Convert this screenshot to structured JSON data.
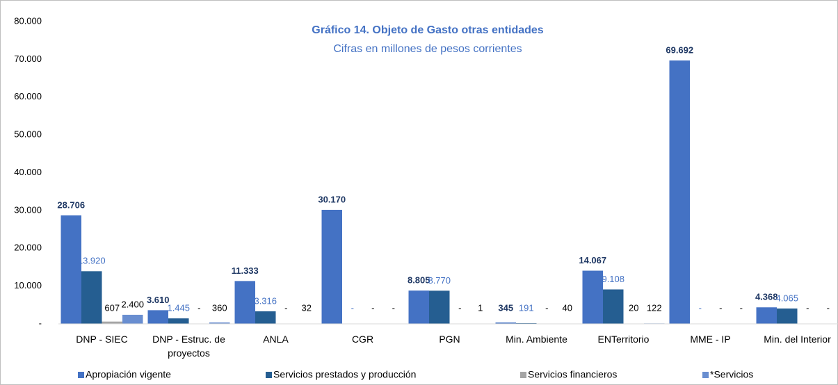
{
  "chart_data": {
    "type": "bar",
    "title": "Gráfico 14. Objeto de Gasto otras entidades",
    "subtitle": "Cifras en millones de pesos corrientes",
    "categories": [
      "DNP - SIEC",
      "DNP - Estruc. de proyectos",
      "ANLA",
      "CGR",
      "PGN",
      "Min. Ambiente",
      "ENTerritorio",
      "MME - IP",
      "Min. del Interior"
    ],
    "series": [
      {
        "name": "Apropiación vigente",
        "color": "#4472c4",
        "values": [
          28706,
          3610,
          11333,
          30170,
          8805,
          345,
          14067,
          69692,
          4368
        ],
        "value_labels": [
          "28.706",
          "3.610",
          "11.333",
          "30.170",
          "8.805",
          "345",
          "14.067",
          "69.692",
          "4.368"
        ]
      },
      {
        "name": "Servicios prestados y producción",
        "color": "#255e91",
        "values": [
          13920,
          1445,
          3316,
          0,
          8770,
          191,
          9108,
          0,
          4065
        ],
        "value_labels": [
          "13.920",
          "1.445",
          "3.316",
          "-",
          "8.770",
          "191",
          "9.108",
          "-",
          "4.065"
        ]
      },
      {
        "name": "Servicios financieros",
        "color": "#a5a5a5",
        "values": [
          607,
          0,
          0,
          0,
          0,
          0,
          20,
          0,
          0
        ],
        "value_labels": [
          "607",
          "-",
          "-",
          "-",
          "-",
          "-",
          "20",
          "-",
          "-"
        ]
      },
      {
        "name": "*Servicios",
        "color": "#698ed0",
        "values": [
          2400,
          360,
          32,
          0,
          1,
          40,
          122,
          0,
          0
        ],
        "value_labels": [
          "2.400",
          "360",
          "32",
          "-",
          "1",
          "40",
          "122",
          "-",
          "-"
        ]
      }
    ],
    "ylim": [
      0,
      80000
    ],
    "yticks": [
      {
        "value": 0,
        "label": "-"
      },
      {
        "value": 10000,
        "label": "10.000"
      },
      {
        "value": 20000,
        "label": "20.000"
      },
      {
        "value": 30000,
        "label": "30.000"
      },
      {
        "value": 40000,
        "label": "40.000"
      },
      {
        "value": 50000,
        "label": "50.000"
      },
      {
        "value": 60000,
        "label": "60.000"
      },
      {
        "value": 70000,
        "label": "70.000"
      },
      {
        "value": 80000,
        "label": "80.000"
      }
    ],
    "grid": false,
    "legend": "bottom"
  }
}
